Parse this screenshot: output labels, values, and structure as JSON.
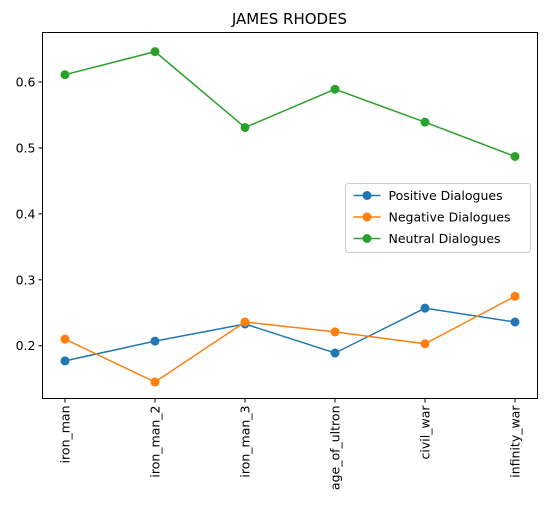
{
  "chart_data": {
    "type": "line",
    "title": "JAMES RHODES",
    "xlabel": "",
    "ylabel": "",
    "categories": [
      "iron_man",
      "iron_man_2",
      "iron_man_3",
      "age_of_ultron",
      "civil_war",
      "infinity_war"
    ],
    "ylim": [
      0.12,
      0.675
    ],
    "yticks": [
      0.2,
      0.3,
      0.4,
      0.5,
      0.6
    ],
    "ytick_labels": [
      "0.2",
      "0.3",
      "0.4",
      "0.5",
      "0.6"
    ],
    "grid": false,
    "legend_position": "center-right",
    "series": [
      {
        "name": "Positive Dialogues",
        "color": "#1f77b4",
        "values": [
          0.177,
          0.207,
          0.233,
          0.189,
          0.257,
          0.236
        ]
      },
      {
        "name": "Negative Dialogues",
        "color": "#ff7f0e",
        "values": [
          0.21,
          0.145,
          0.236,
          0.221,
          0.203,
          0.275
        ]
      },
      {
        "name": "Neutral Dialogues",
        "color": "#2ca02c",
        "values": [
          0.611,
          0.646,
          0.531,
          0.589,
          0.539,
          0.487
        ]
      }
    ]
  }
}
